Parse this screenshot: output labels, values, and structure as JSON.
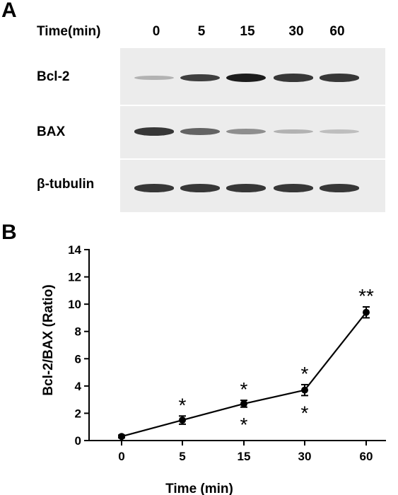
{
  "panels": {
    "a": "A",
    "b": "B"
  },
  "blot": {
    "time_label": "Time(min)",
    "lanes": [
      "0",
      "5",
      "15",
      "30",
      "60"
    ],
    "rows": [
      {
        "label": "Bcl-2",
        "intensities": [
          0.15,
          0.8,
          1.0,
          0.85,
          0.85
        ]
      },
      {
        "label": "BAX",
        "intensities": [
          0.85,
          0.6,
          0.35,
          0.15,
          0.08
        ]
      },
      {
        "label": "β-tubulin",
        "intensities": [
          0.85,
          0.85,
          0.85,
          0.85,
          0.85
        ]
      }
    ]
  },
  "chart_data": {
    "type": "line",
    "categories": [
      "0",
      "5",
      "15",
      "30",
      "60"
    ],
    "values": [
      0.3,
      1.5,
      2.7,
      3.7,
      9.4
    ],
    "errors": [
      0.1,
      0.3,
      0.25,
      0.4,
      0.4
    ],
    "annotations_above": [
      "",
      "*",
      "*",
      "*",
      "**"
    ],
    "annotations_below": [
      "",
      "",
      "*",
      "*",
      ""
    ],
    "xlabel": "Time (min)",
    "ylabel": "Bcl-2/BAX (Ratio)",
    "ylim": [
      0,
      14
    ],
    "yticks": [
      "0",
      "2",
      "4",
      "6",
      "8",
      "10",
      "12",
      "14"
    ],
    "grid": false
  }
}
